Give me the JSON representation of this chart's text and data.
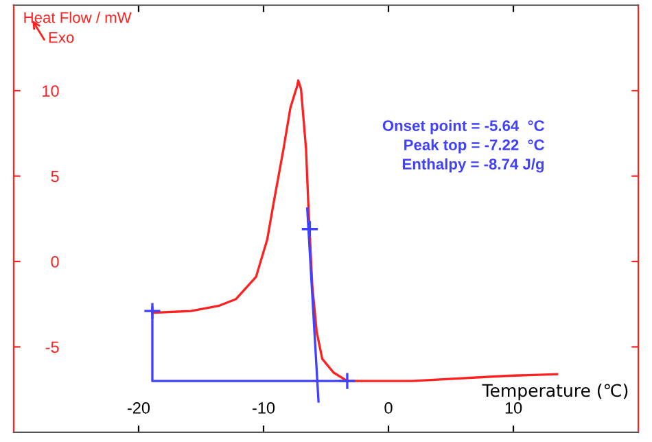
{
  "chart_data": {
    "type": "line",
    "xlabel": "Temperature (℃)",
    "ylabel": "Heat Flow / mW",
    "annotations": [
      "Exo",
      "Onset point = -5.64  °C",
      "Peak top = -7.22  °C",
      "Enthalpy = -8.74 J/g"
    ],
    "xlim": [
      -30,
      20
    ],
    "ylim": [
      -10,
      15
    ],
    "xticks": [
      {
        "value": -20,
        "label": "-20"
      },
      {
        "value": -10,
        "label": "-10"
      },
      0,
      10
    ],
    "yticks": [
      {
        "value": -5,
        "label": "-5"
      },
      0,
      5,
      10
    ],
    "grid": false,
    "series": [
      {
        "color": "#ff2020",
        "x": [
          -18.9,
          -15.8,
          -13.6,
          -12.2,
          -10.6,
          -9.7,
          -9.2,
          -8.4,
          -7.85,
          -7.3,
          -7.22,
          -7.0,
          -6.6,
          -6.4,
          -6.1,
          -5.75,
          -5.3,
          -4.4,
          -3.3,
          1.9,
          9.3,
          13.5
        ],
        "values": [
          -3.0,
          -2.9,
          -2.6,
          -2.2,
          -0.9,
          1.3,
          3.4,
          6.6,
          9.0,
          10.3,
          10.6,
          10.1,
          6.6,
          3.1,
          -1.4,
          -4.1,
          -5.7,
          -6.5,
          -7.0,
          -7.0,
          -6.7,
          -6.6
        ]
      },
      {
        "color": "#4040ff",
        "x": [
          -18.9,
          -18.9,
          -3.3
        ],
        "values": [
          -2.7,
          -7.0,
          -7.0
        ]
      },
      {
        "color": "#4040ff",
        "x": [
          -6.5,
          -5.6
        ],
        "values": [
          3.1,
          -8.2
        ]
      },
      {
        "type": "scatter",
        "marker": "cross",
        "color": "#4040ff",
        "x": [
          -18.9,
          -6.3,
          -3.3
        ],
        "values": [
          -2.9,
          1.9,
          -7.0
        ]
      }
    ]
  }
}
